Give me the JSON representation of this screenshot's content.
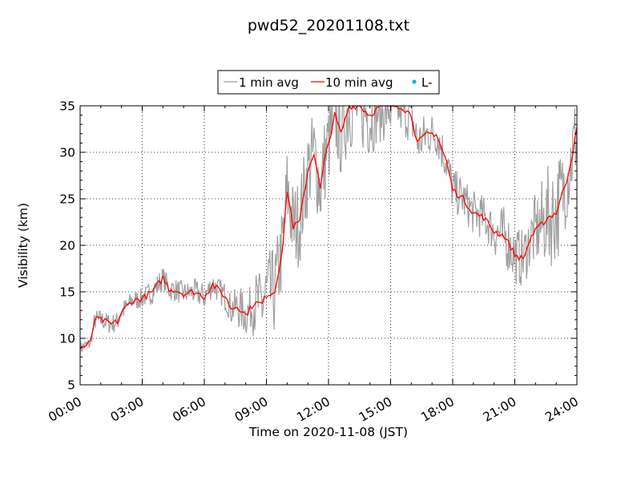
{
  "chart_data": {
    "type": "line",
    "title": "pwd52_20201108.txt",
    "xlabel": "Time on 2020-11-08 (JST)",
    "ylabel": "Visibility (km)",
    "xlim_hours": [
      0,
      24
    ],
    "ylim": [
      5,
      35
    ],
    "x_ticks": [
      "00:00",
      "03:00",
      "06:00",
      "09:00",
      "12:00",
      "15:00",
      "18:00",
      "21:00",
      "24:00"
    ],
    "y_ticks": [
      "5",
      "10",
      "15",
      "20",
      "25",
      "30",
      "35"
    ],
    "grid": true,
    "legend_position": "top-center",
    "series": [
      {
        "name": "1 min avg",
        "color": "#a0a0a0",
        "noise_km": [
          0.5,
          0.5,
          0.7,
          0.7,
          0.7,
          0.7,
          0.7,
          0.7,
          0.7,
          0.8,
          0.8,
          0.8,
          0.8,
          0.8,
          0.8,
          0.9,
          0.9,
          0.9,
          0.9,
          1.0,
          1.2,
          1.5,
          1.5,
          2.2,
          3.0,
          3.0,
          3.0,
          3.0,
          3.0,
          3.0,
          3.0,
          3.0,
          3.0,
          3.0,
          3.0,
          3.0,
          3.0,
          3.0,
          3.0,
          2.5,
          2.5,
          2.5,
          2.2,
          2.0,
          1.8,
          1.6,
          1.5,
          1.5,
          1.5,
          1.5,
          1.5,
          1.5,
          1.5,
          1.5,
          1.5,
          1.8,
          2.0,
          2.0,
          2.0,
          2.0,
          2.5,
          3.0,
          3.5,
          3.5,
          3.0,
          3.0
        ]
      },
      {
        "name": "10 min avg",
        "color": "#ff0000",
        "x_hours": [
          0,
          0.3,
          0.5,
          0.7,
          1.0,
          1.5,
          1.8,
          2.0,
          2.5,
          3.0,
          3.5,
          4.0,
          4.3,
          4.6,
          5.0,
          5.5,
          6.0,
          6.4,
          7.0,
          7.3,
          7.6,
          8.0,
          8.4,
          8.8,
          9.0,
          9.4,
          9.8,
          10.0,
          10.3,
          10.6,
          11.0,
          11.3,
          11.6,
          11.8,
          12.0,
          12.3,
          12.6,
          13.0,
          13.5,
          14.0,
          14.5,
          15.0,
          15.5,
          16.0,
          16.3,
          16.8,
          17.2,
          17.7,
          18.0,
          18.5,
          19.0,
          19.5,
          20.0,
          20.5,
          21.0,
          21.4,
          21.8,
          22.2,
          22.6,
          23.0,
          23.5,
          23.8,
          24.0
        ],
        "values": [
          9.0,
          9.2,
          9.5,
          12.0,
          12.0,
          11.5,
          11.8,
          12.8,
          14.0,
          14.3,
          15.0,
          16.5,
          15.3,
          15.2,
          14.8,
          15.0,
          14.5,
          15.8,
          14.5,
          13.2,
          13.5,
          12.5,
          13.8,
          13.7,
          14.7,
          15.0,
          20.0,
          26.0,
          22.0,
          22.5,
          28.0,
          30.0,
          26.0,
          29.0,
          31.0,
          34.0,
          32.0,
          35.0,
          35.0,
          34.0,
          35.0,
          35.0,
          35.0,
          34.0,
          31.0,
          32.0,
          32.0,
          29.0,
          26.0,
          25.0,
          23.5,
          23.0,
          21.5,
          21.0,
          19.0,
          18.5,
          21.0,
          22.0,
          23.0,
          23.5,
          27.0,
          30.0,
          32.5
        ]
      },
      {
        "name": "L-",
        "color": "#00bfbf",
        "marker": "dot",
        "values": []
      }
    ]
  }
}
